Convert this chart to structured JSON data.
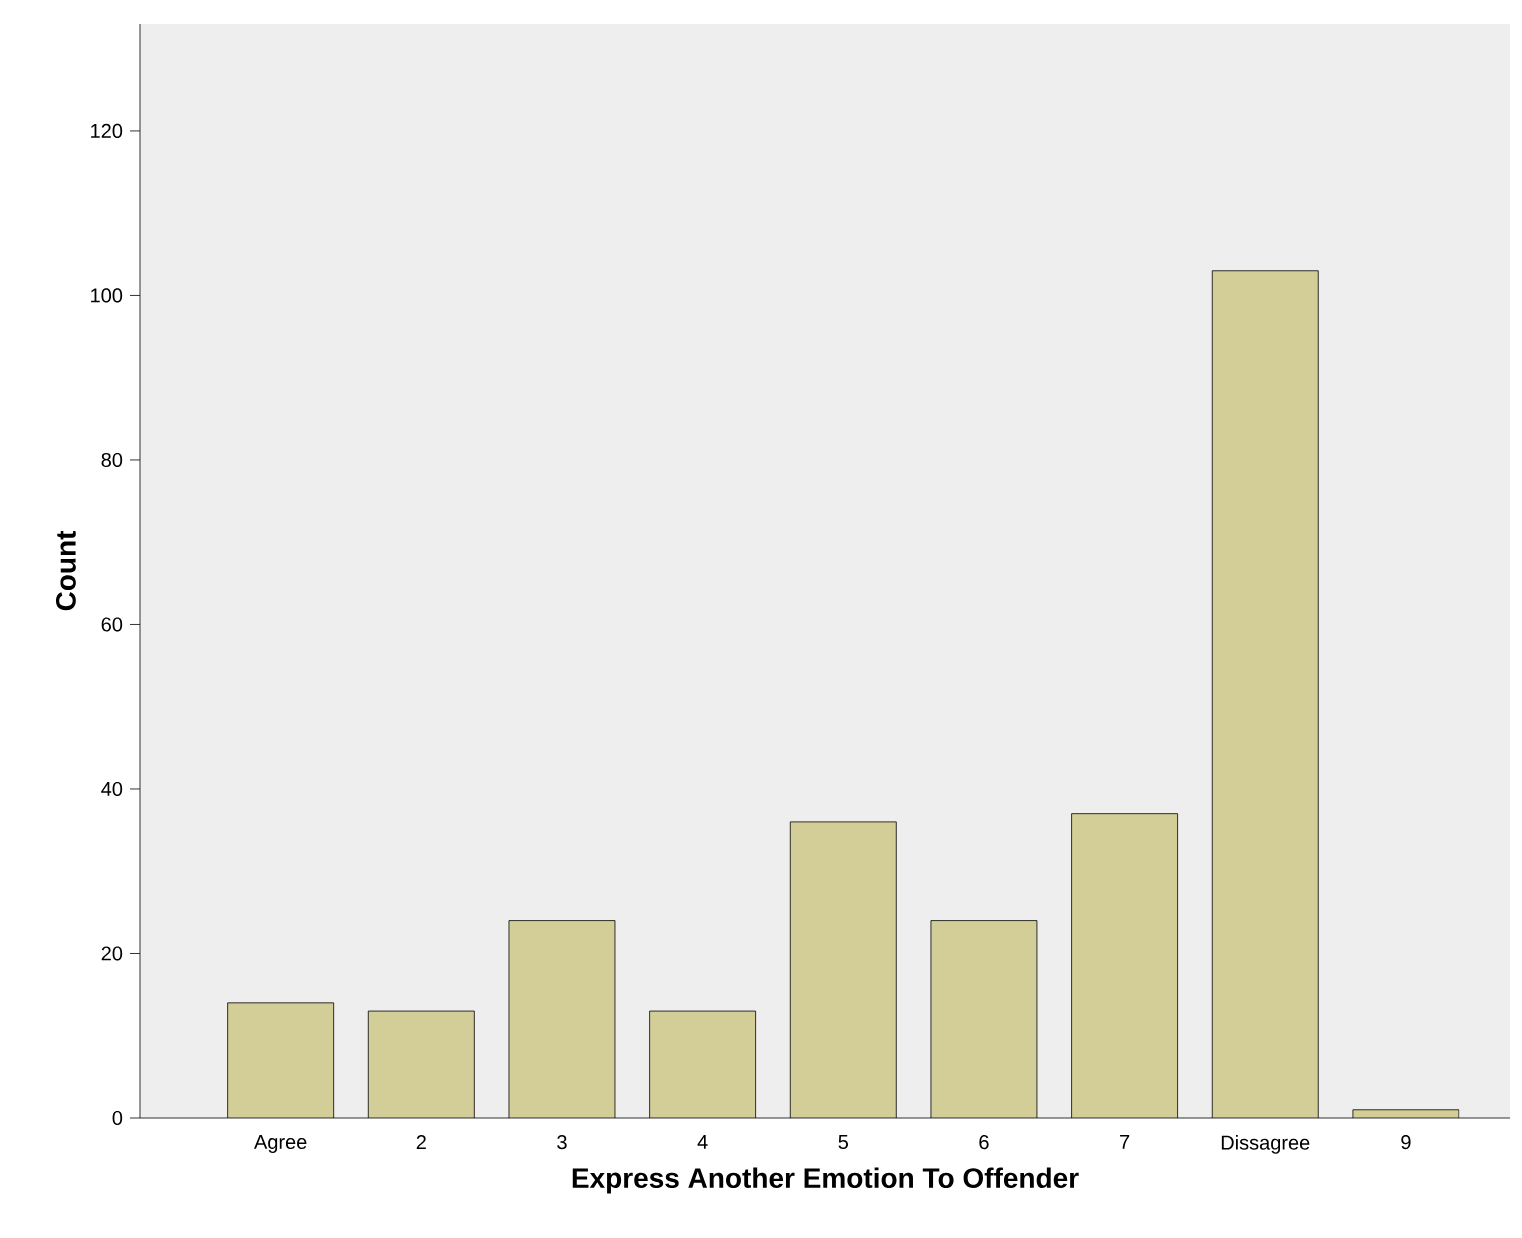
{
  "chart_data": {
    "type": "bar",
    "xlabel": "Express Another Emotion To Offender",
    "ylabel": "Count",
    "categories": [
      "Agree",
      "2",
      "3",
      "4",
      "5",
      "6",
      "7",
      "Dissagree",
      "9"
    ],
    "values": [
      14,
      13,
      24,
      13,
      36,
      24,
      37,
      103,
      1
    ],
    "color": "#d3ce98",
    "ylim": [
      0,
      133
    ],
    "yticks": [
      0,
      20,
      40,
      60,
      80,
      100,
      120
    ]
  }
}
